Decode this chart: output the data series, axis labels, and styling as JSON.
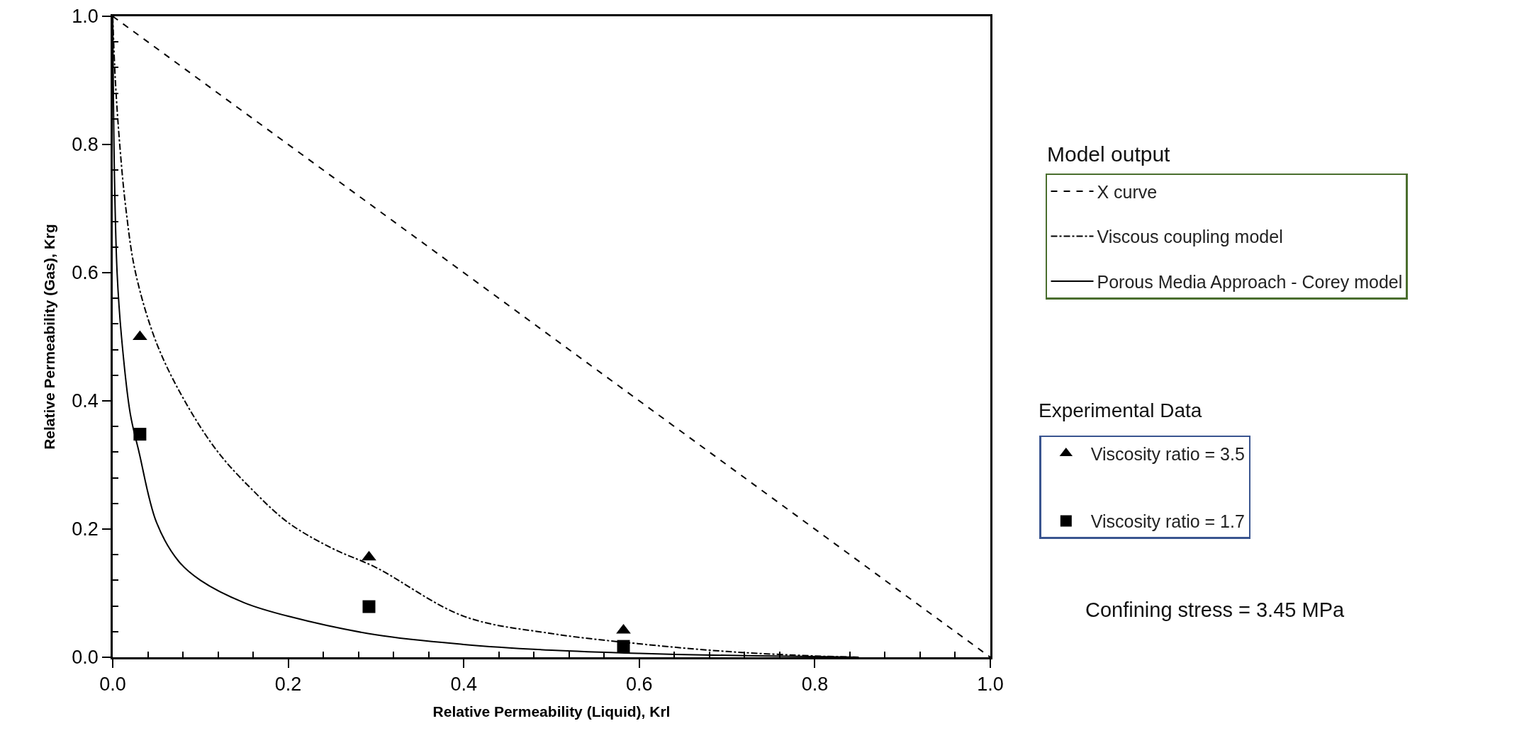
{
  "chart_data": {
    "type": "line",
    "xlabel": "Relative Permeability (Liquid), Krl",
    "ylabel": "Relative Permeability (Gas), Krg",
    "xlim": [
      0,
      1
    ],
    "ylim": [
      0,
      1
    ],
    "xticks": [
      {
        "value": 0,
        "label": "0.0"
      },
      {
        "value": 0.04,
        "label": null
      },
      {
        "value": 0.08,
        "label": null
      },
      {
        "value": 0.12,
        "label": null
      },
      {
        "value": 0.16,
        "label": null
      },
      {
        "value": 0.2,
        "label": "0.2"
      },
      {
        "value": 0.24,
        "label": null
      },
      {
        "value": 0.28,
        "label": null
      },
      {
        "value": 0.32,
        "label": null
      },
      {
        "value": 0.36,
        "label": null
      },
      {
        "value": 0.4,
        "label": "0.4"
      },
      {
        "value": 0.44,
        "label": null
      },
      {
        "value": 0.48,
        "label": null
      },
      {
        "value": 0.52,
        "label": null
      },
      {
        "value": 0.56,
        "label": null
      },
      {
        "value": 0.6,
        "label": "0.6"
      },
      {
        "value": 0.64,
        "label": null
      },
      {
        "value": 0.68,
        "label": null
      },
      {
        "value": 0.72,
        "label": null
      },
      {
        "value": 0.76,
        "label": null
      },
      {
        "value": 0.8,
        "label": "0.8"
      },
      {
        "value": 0.84,
        "label": null
      },
      {
        "value": 0.88,
        "label": null
      },
      {
        "value": 0.92,
        "label": null
      },
      {
        "value": 0.96,
        "label": null
      },
      {
        "value": 1,
        "label": "1.0"
      }
    ],
    "yticks": [
      {
        "value": 0,
        "label": "0.0"
      },
      {
        "value": 0.04,
        "label": null
      },
      {
        "value": 0.08,
        "label": null
      },
      {
        "value": 0.12,
        "label": null
      },
      {
        "value": 0.16,
        "label": null
      },
      {
        "value": 0.2,
        "label": "0.2"
      },
      {
        "value": 0.24,
        "label": null
      },
      {
        "value": 0.28,
        "label": null
      },
      {
        "value": 0.32,
        "label": null
      },
      {
        "value": 0.36,
        "label": null
      },
      {
        "value": 0.4,
        "label": "0.4"
      },
      {
        "value": 0.44,
        "label": null
      },
      {
        "value": 0.48,
        "label": null
      },
      {
        "value": 0.52,
        "label": null
      },
      {
        "value": 0.56,
        "label": null
      },
      {
        "value": 0.6,
        "label": "0.6"
      },
      {
        "value": 0.64,
        "label": null
      },
      {
        "value": 0.68,
        "label": null
      },
      {
        "value": 0.72,
        "label": null
      },
      {
        "value": 0.76,
        "label": null
      },
      {
        "value": 0.8,
        "label": "0.8"
      },
      {
        "value": 0.84,
        "label": null
      },
      {
        "value": 0.88,
        "label": null
      },
      {
        "value": 0.92,
        "label": null
      },
      {
        "value": 0.96,
        "label": null
      },
      {
        "value": 1,
        "label": "1.0"
      }
    ],
    "grid": false,
    "legend": "right",
    "annotations": [
      "Model output",
      "Experimental Data",
      "Confining stress = 3.45 MPa"
    ],
    "series": [
      {
        "name": "X curve",
        "line_style": "dashed",
        "color": "#000000",
        "x": [
          0,
          1
        ],
        "values": [
          1,
          0
        ]
      },
      {
        "name": "Viscous coupling model",
        "line_style": "dashdot",
        "color": "#000000",
        "x": [
          0,
          0.003,
          0.008,
          0.015,
          0.026,
          0.05,
          0.082,
          0.12,
          0.16,
          0.2,
          0.25,
          0.3,
          0.4,
          0.5,
          0.6,
          0.7,
          0.8,
          0.85
        ],
        "values": [
          1,
          0.9,
          0.8,
          0.7,
          0.6,
          0.49,
          0.4,
          0.32,
          0.26,
          0.21,
          0.17,
          0.14,
          0.064,
          0.037,
          0.021,
          0.009,
          0.002,
          0
        ]
      },
      {
        "name": "Porous Media Approach - Corey model",
        "line_style": "solid",
        "color": "#000000",
        "x": [
          0,
          0.002,
          0.005,
          0.01,
          0.02,
          0.03,
          0.05,
          0.075,
          0.1,
          0.15,
          0.2,
          0.3,
          0.4,
          0.5,
          0.6,
          0.7,
          0.8,
          0.85
        ],
        "values": [
          1,
          0.75,
          0.6,
          0.5,
          0.38,
          0.32,
          0.21,
          0.15,
          0.12,
          0.085,
          0.064,
          0.035,
          0.02,
          0.011,
          0.006,
          0.003,
          0.001,
          0
        ]
      },
      {
        "name": "Viscosity ratio = 3.5",
        "type": "scatter",
        "marker": "triangle",
        "color": "#000000",
        "x": [
          0.031,
          0.292,
          0.582
        ],
        "values": [
          0.5,
          0.156,
          0.042
        ]
      },
      {
        "name": "Viscosity ratio = 1.7",
        "type": "scatter",
        "marker": "square",
        "color": "#000000",
        "x": [
          0.031,
          0.292,
          0.582
        ],
        "values": [
          0.348,
          0.079,
          0.017
        ]
      }
    ]
  }
}
